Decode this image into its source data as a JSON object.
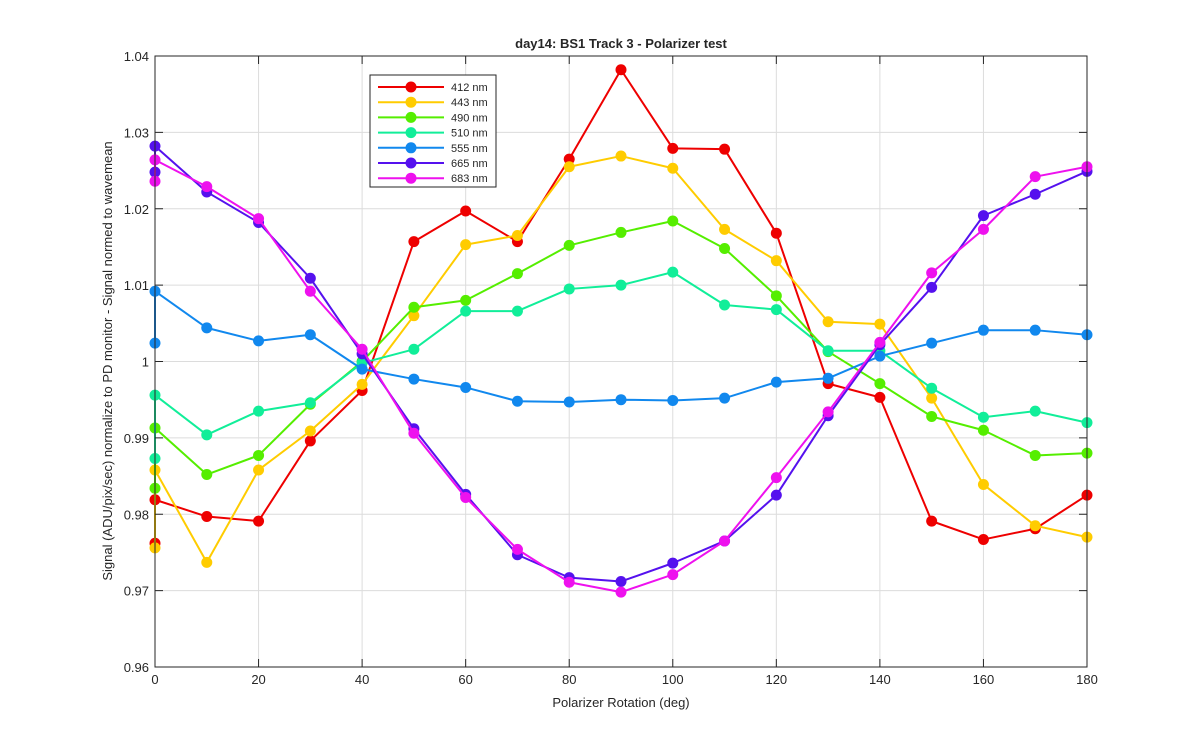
{
  "chart_data": {
    "type": "line",
    "title": "day14: BS1  Track 3 - Polarizer test",
    "xlabel": "Polarizer Rotation (deg)",
    "ylabel": "Signal (ADU/pix/sec) normalize to PD monitor - Signal normed to wavemean",
    "xlim": [
      0,
      180
    ],
    "ylim": [
      0.96,
      1.04
    ],
    "xticks": [
      0,
      20,
      40,
      60,
      80,
      100,
      120,
      140,
      160,
      180
    ],
    "yticks": [
      0.96,
      0.97,
      0.98,
      0.99,
      1,
      1.01,
      1.02,
      1.03,
      1.04
    ],
    "ytick_labels": [
      "0.96",
      "0.97",
      "0.98",
      "0.99",
      "1",
      "1.01",
      "1.02",
      "1.03",
      "1.04"
    ],
    "grid": true,
    "legend_position": "top-left",
    "x": [
      0,
      0,
      10,
      20,
      30,
      40,
      50,
      60,
      70,
      80,
      90,
      100,
      110,
      120,
      130,
      140,
      150,
      160,
      170,
      180
    ],
    "series": [
      {
        "name": "412 nm",
        "color": "#ee0000",
        "values": [
          0.9762,
          0.9819,
          0.9797,
          0.9791,
          0.9896,
          0.9962,
          1.0157,
          1.0197,
          1.0157,
          1.0265,
          1.0382,
          1.0279,
          1.0278,
          1.0168,
          0.9971,
          0.9953,
          0.9791,
          0.9767,
          0.9781,
          0.9825
        ]
      },
      {
        "name": "443 nm",
        "color": "#ffcc00",
        "values": [
          0.9756,
          0.9858,
          0.9737,
          0.9858,
          0.9909,
          0.997,
          1.006,
          1.0153,
          1.0165,
          1.0255,
          1.0269,
          1.0253,
          1.0173,
          1.0132,
          1.0052,
          1.0049,
          0.9952,
          0.9839,
          0.9785,
          0.977
        ]
      },
      {
        "name": "490 nm",
        "color": "#55ee00",
        "values": [
          0.9834,
          0.9913,
          0.9852,
          0.9877,
          0.9944,
          1.0,
          1.0071,
          1.008,
          1.0115,
          1.0152,
          1.0169,
          1.0184,
          1.0148,
          1.0086,
          1.0013,
          0.9971,
          0.9928,
          0.991,
          0.9877,
          0.988
        ]
      },
      {
        "name": "510 nm",
        "color": "#11ee99",
        "values": [
          0.9873,
          0.9956,
          0.9904,
          0.9935,
          0.9946,
          0.9998,
          1.0016,
          1.0066,
          1.0066,
          1.0095,
          1.01,
          1.0117,
          1.0074,
          1.0068,
          1.0014,
          1.0014,
          0.9965,
          0.9927,
          0.9935,
          0.992
        ]
      },
      {
        "name": "555 nm",
        "color": "#1188ee",
        "values": [
          1.0024,
          1.0092,
          1.0044,
          1.0027,
          1.0035,
          0.999,
          0.9977,
          0.9966,
          0.9948,
          0.9947,
          0.995,
          0.9949,
          0.9952,
          0.9973,
          0.9978,
          1.0007,
          1.0024,
          1.0041,
          1.0041,
          1.0035
        ]
      },
      {
        "name": "665 nm",
        "color": "#5511ee",
        "values": [
          1.0248,
          1.0282,
          1.0222,
          1.0182,
          1.0109,
          1.001,
          0.9912,
          0.9826,
          0.9747,
          0.9717,
          0.9712,
          0.9736,
          0.9765,
          0.9825,
          0.9929,
          1.0022,
          1.0097,
          1.0191,
          1.0219,
          1.0249
        ]
      },
      {
        "name": "683 nm",
        "color": "#ee11ee",
        "values": [
          1.0236,
          1.0264,
          1.0229,
          1.0187,
          1.0092,
          1.0016,
          0.9906,
          0.9822,
          0.9754,
          0.9711,
          0.9698,
          0.9721,
          0.9765,
          0.9848,
          0.9934,
          1.0025,
          1.0116,
          1.0173,
          1.0242,
          1.0255
        ]
      }
    ]
  }
}
